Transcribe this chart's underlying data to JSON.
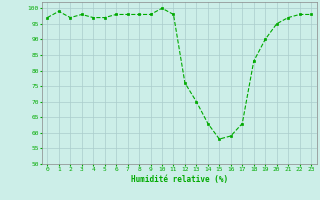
{
  "x": [
    0,
    1,
    2,
    3,
    4,
    5,
    6,
    7,
    8,
    9,
    10,
    11,
    12,
    13,
    14,
    15,
    16,
    17,
    18,
    19,
    20,
    21,
    22,
    23
  ],
  "y": [
    97,
    99,
    97,
    98,
    97,
    97,
    98,
    98,
    98,
    98,
    100,
    98,
    76,
    70,
    63,
    58,
    59,
    63,
    83,
    90,
    95,
    97,
    98,
    98
  ],
  "xlabel": "Humidité relative (%)",
  "ylim": [
    50,
    102
  ],
  "yticks": [
    50,
    55,
    60,
    65,
    70,
    75,
    80,
    85,
    90,
    95,
    100
  ],
  "xticks": [
    0,
    1,
    2,
    3,
    4,
    5,
    6,
    7,
    8,
    9,
    10,
    11,
    12,
    13,
    14,
    15,
    16,
    17,
    18,
    19,
    20,
    21,
    22,
    23
  ],
  "line_color": "#00aa00",
  "marker_color": "#00aa00",
  "bg_color": "#cceee8",
  "grid_color": "#aacccc",
  "xlabel_color": "#00aa00",
  "tick_color": "#00aa00"
}
